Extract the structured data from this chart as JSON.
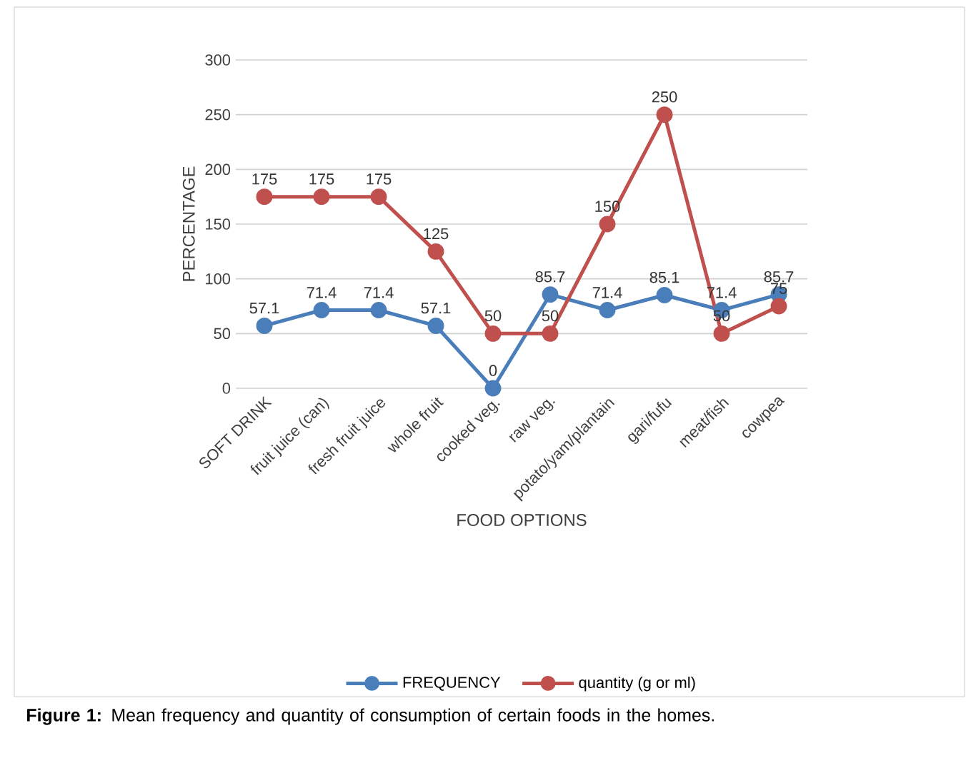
{
  "chart_data": {
    "type": "line",
    "xlabel": "FOOD OPTIONS",
    "ylabel": "PERCENTAGE",
    "categories": [
      "SOFT DRINK",
      "fruit juice (can)",
      "fresh fruit juice",
      "whole fruit",
      "cooked veg.",
      "raw veg.",
      "potato/yam/plantain",
      "gari/fufu",
      "meat/fish",
      "cowpea"
    ],
    "series": [
      {
        "name": "FREQUENCY",
        "color": "#4a7ebb",
        "values": [
          57.1,
          71.4,
          71.4,
          57.1,
          0,
          85.7,
          71.4,
          85.1,
          71.4,
          85.7
        ]
      },
      {
        "name": "quantity (g or ml)",
        "color": "#c0504d",
        "values": [
          175,
          175,
          175,
          125,
          50,
          50,
          150,
          250,
          50,
          75
        ]
      }
    ],
    "ylim": [
      0,
      300
    ],
    "yticks": [
      0,
      50,
      100,
      150,
      200,
      250,
      300
    ],
    "grid": "y",
    "legend": "bottom",
    "marker": "circle",
    "line_style": "solid",
    "data_labels": true,
    "annotations": [
      "**Figure 1:** Mean frequency and quantity of consumption of certain foods in the homes."
    ]
  }
}
